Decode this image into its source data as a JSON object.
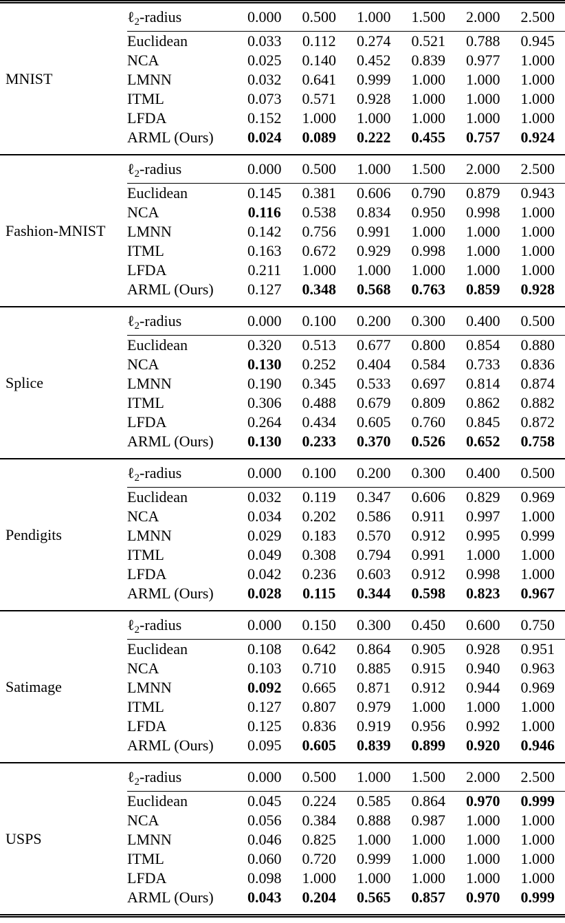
{
  "table": {
    "radius_label": {
      "ell": "ℓ",
      "sub": "2",
      "rest": "-radius"
    },
    "sections": [
      {
        "dataset": "MNIST",
        "radii": [
          "0.000",
          "0.500",
          "1.000",
          "1.500",
          "2.000",
          "2.500"
        ],
        "rows": [
          {
            "method": "Euclidean",
            "values": [
              "0.033",
              "0.112",
              "0.274",
              "0.521",
              "0.788",
              "0.945"
            ],
            "bold": [
              0,
              0,
              0,
              0,
              0,
              0
            ]
          },
          {
            "method": "NCA",
            "values": [
              "0.025",
              "0.140",
              "0.452",
              "0.839",
              "0.977",
              "1.000"
            ],
            "bold": [
              0,
              0,
              0,
              0,
              0,
              0
            ]
          },
          {
            "method": "LMNN",
            "values": [
              "0.032",
              "0.641",
              "0.999",
              "1.000",
              "1.000",
              "1.000"
            ],
            "bold": [
              0,
              0,
              0,
              0,
              0,
              0
            ]
          },
          {
            "method": "ITML",
            "values": [
              "0.073",
              "0.571",
              "0.928",
              "1.000",
              "1.000",
              "1.000"
            ],
            "bold": [
              0,
              0,
              0,
              0,
              0,
              0
            ]
          },
          {
            "method": "LFDA",
            "values": [
              "0.152",
              "1.000",
              "1.000",
              "1.000",
              "1.000",
              "1.000"
            ],
            "bold": [
              0,
              0,
              0,
              0,
              0,
              0
            ]
          },
          {
            "method": "ARML (Ours)",
            "values": [
              "0.024",
              "0.089",
              "0.222",
              "0.455",
              "0.757",
              "0.924"
            ],
            "bold": [
              1,
              1,
              1,
              1,
              1,
              1
            ]
          }
        ]
      },
      {
        "dataset": "Fashion-MNIST",
        "radii": [
          "0.000",
          "0.500",
          "1.000",
          "1.500",
          "2.000",
          "2.500"
        ],
        "rows": [
          {
            "method": "Euclidean",
            "values": [
              "0.145",
              "0.381",
              "0.606",
              "0.790",
              "0.879",
              "0.943"
            ],
            "bold": [
              0,
              0,
              0,
              0,
              0,
              0
            ]
          },
          {
            "method": "NCA",
            "values": [
              "0.116",
              "0.538",
              "0.834",
              "0.950",
              "0.998",
              "1.000"
            ],
            "bold": [
              1,
              0,
              0,
              0,
              0,
              0
            ]
          },
          {
            "method": "LMNN",
            "values": [
              "0.142",
              "0.756",
              "0.991",
              "1.000",
              "1.000",
              "1.000"
            ],
            "bold": [
              0,
              0,
              0,
              0,
              0,
              0
            ]
          },
          {
            "method": "ITML",
            "values": [
              "0.163",
              "0.672",
              "0.929",
              "0.998",
              "1.000",
              "1.000"
            ],
            "bold": [
              0,
              0,
              0,
              0,
              0,
              0
            ]
          },
          {
            "method": "LFDA",
            "values": [
              "0.211",
              "1.000",
              "1.000",
              "1.000",
              "1.000",
              "1.000"
            ],
            "bold": [
              0,
              0,
              0,
              0,
              0,
              0
            ]
          },
          {
            "method": "ARML (Ours)",
            "values": [
              "0.127",
              "0.348",
              "0.568",
              "0.763",
              "0.859",
              "0.928"
            ],
            "bold": [
              0,
              1,
              1,
              1,
              1,
              1
            ]
          }
        ]
      },
      {
        "dataset": "Splice",
        "radii": [
          "0.000",
          "0.100",
          "0.200",
          "0.300",
          "0.400",
          "0.500"
        ],
        "rows": [
          {
            "method": "Euclidean",
            "values": [
              "0.320",
              "0.513",
              "0.677",
              "0.800",
              "0.854",
              "0.880"
            ],
            "bold": [
              0,
              0,
              0,
              0,
              0,
              0
            ]
          },
          {
            "method": "NCA",
            "values": [
              "0.130",
              "0.252",
              "0.404",
              "0.584",
              "0.733",
              "0.836"
            ],
            "bold": [
              1,
              0,
              0,
              0,
              0,
              0
            ]
          },
          {
            "method": "LMNN",
            "values": [
              "0.190",
              "0.345",
              "0.533",
              "0.697",
              "0.814",
              "0.874"
            ],
            "bold": [
              0,
              0,
              0,
              0,
              0,
              0
            ]
          },
          {
            "method": "ITML",
            "values": [
              "0.306",
              "0.488",
              "0.679",
              "0.809",
              "0.862",
              "0.882"
            ],
            "bold": [
              0,
              0,
              0,
              0,
              0,
              0
            ]
          },
          {
            "method": "LFDA",
            "values": [
              "0.264",
              "0.434",
              "0.605",
              "0.760",
              "0.845",
              "0.872"
            ],
            "bold": [
              0,
              0,
              0,
              0,
              0,
              0
            ]
          },
          {
            "method": "ARML (Ours)",
            "values": [
              "0.130",
              "0.233",
              "0.370",
              "0.526",
              "0.652",
              "0.758"
            ],
            "bold": [
              1,
              1,
              1,
              1,
              1,
              1
            ]
          }
        ]
      },
      {
        "dataset": "Pendigits",
        "radii": [
          "0.000",
          "0.100",
          "0.200",
          "0.300",
          "0.400",
          "0.500"
        ],
        "rows": [
          {
            "method": "Euclidean",
            "values": [
              "0.032",
              "0.119",
              "0.347",
              "0.606",
              "0.829",
              "0.969"
            ],
            "bold": [
              0,
              0,
              0,
              0,
              0,
              0
            ]
          },
          {
            "method": "NCA",
            "values": [
              "0.034",
              "0.202",
              "0.586",
              "0.911",
              "0.997",
              "1.000"
            ],
            "bold": [
              0,
              0,
              0,
              0,
              0,
              0
            ]
          },
          {
            "method": "LMNN",
            "values": [
              "0.029",
              "0.183",
              "0.570",
              "0.912",
              "0.995",
              "0.999"
            ],
            "bold": [
              0,
              0,
              0,
              0,
              0,
              0
            ]
          },
          {
            "method": "ITML",
            "values": [
              "0.049",
              "0.308",
              "0.794",
              "0.991",
              "1.000",
              "1.000"
            ],
            "bold": [
              0,
              0,
              0,
              0,
              0,
              0
            ]
          },
          {
            "method": "LFDA",
            "values": [
              "0.042",
              "0.236",
              "0.603",
              "0.912",
              "0.998",
              "1.000"
            ],
            "bold": [
              0,
              0,
              0,
              0,
              0,
              0
            ]
          },
          {
            "method": "ARML (Ours)",
            "values": [
              "0.028",
              "0.115",
              "0.344",
              "0.598",
              "0.823",
              "0.967"
            ],
            "bold": [
              1,
              1,
              1,
              1,
              1,
              1
            ]
          }
        ]
      },
      {
        "dataset": "Satimage",
        "radii": [
          "0.000",
          "0.150",
          "0.300",
          "0.450",
          "0.600",
          "0.750"
        ],
        "rows": [
          {
            "method": "Euclidean",
            "values": [
              "0.108",
              "0.642",
              "0.864",
              "0.905",
              "0.928",
              "0.951"
            ],
            "bold": [
              0,
              0,
              0,
              0,
              0,
              0
            ]
          },
          {
            "method": "NCA",
            "values": [
              "0.103",
              "0.710",
              "0.885",
              "0.915",
              "0.940",
              "0.963"
            ],
            "bold": [
              0,
              0,
              0,
              0,
              0,
              0
            ]
          },
          {
            "method": "LMNN",
            "values": [
              "0.092",
              "0.665",
              "0.871",
              "0.912",
              "0.944",
              "0.969"
            ],
            "bold": [
              1,
              0,
              0,
              0,
              0,
              0
            ]
          },
          {
            "method": "ITML",
            "values": [
              "0.127",
              "0.807",
              "0.979",
              "1.000",
              "1.000",
              "1.000"
            ],
            "bold": [
              0,
              0,
              0,
              0,
              0,
              0
            ]
          },
          {
            "method": "LFDA",
            "values": [
              "0.125",
              "0.836",
              "0.919",
              "0.956",
              "0.992",
              "1.000"
            ],
            "bold": [
              0,
              0,
              0,
              0,
              0,
              0
            ]
          },
          {
            "method": "ARML (Ours)",
            "values": [
              "0.095",
              "0.605",
              "0.839",
              "0.899",
              "0.920",
              "0.946"
            ],
            "bold": [
              0,
              1,
              1,
              1,
              1,
              1
            ]
          }
        ]
      },
      {
        "dataset": "USPS",
        "radii": [
          "0.000",
          "0.500",
          "1.000",
          "1.500",
          "2.000",
          "2.500"
        ],
        "rows": [
          {
            "method": "Euclidean",
            "values": [
              "0.045",
              "0.224",
              "0.585",
              "0.864",
              "0.970",
              "0.999"
            ],
            "bold": [
              0,
              0,
              0,
              0,
              1,
              1
            ]
          },
          {
            "method": "NCA",
            "values": [
              "0.056",
              "0.384",
              "0.888",
              "0.987",
              "1.000",
              "1.000"
            ],
            "bold": [
              0,
              0,
              0,
              0,
              0,
              0
            ]
          },
          {
            "method": "LMNN",
            "values": [
              "0.046",
              "0.825",
              "1.000",
              "1.000",
              "1.000",
              "1.000"
            ],
            "bold": [
              0,
              0,
              0,
              0,
              0,
              0
            ]
          },
          {
            "method": "ITML",
            "values": [
              "0.060",
              "0.720",
              "0.999",
              "1.000",
              "1.000",
              "1.000"
            ],
            "bold": [
              0,
              0,
              0,
              0,
              0,
              0
            ]
          },
          {
            "method": "LFDA",
            "values": [
              "0.098",
              "1.000",
              "1.000",
              "1.000",
              "1.000",
              "1.000"
            ],
            "bold": [
              0,
              0,
              0,
              0,
              0,
              0
            ]
          },
          {
            "method": "ARML (Ours)",
            "values": [
              "0.043",
              "0.204",
              "0.565",
              "0.857",
              "0.970",
              "0.999"
            ],
            "bold": [
              1,
              1,
              1,
              1,
              1,
              1
            ]
          }
        ]
      }
    ]
  }
}
